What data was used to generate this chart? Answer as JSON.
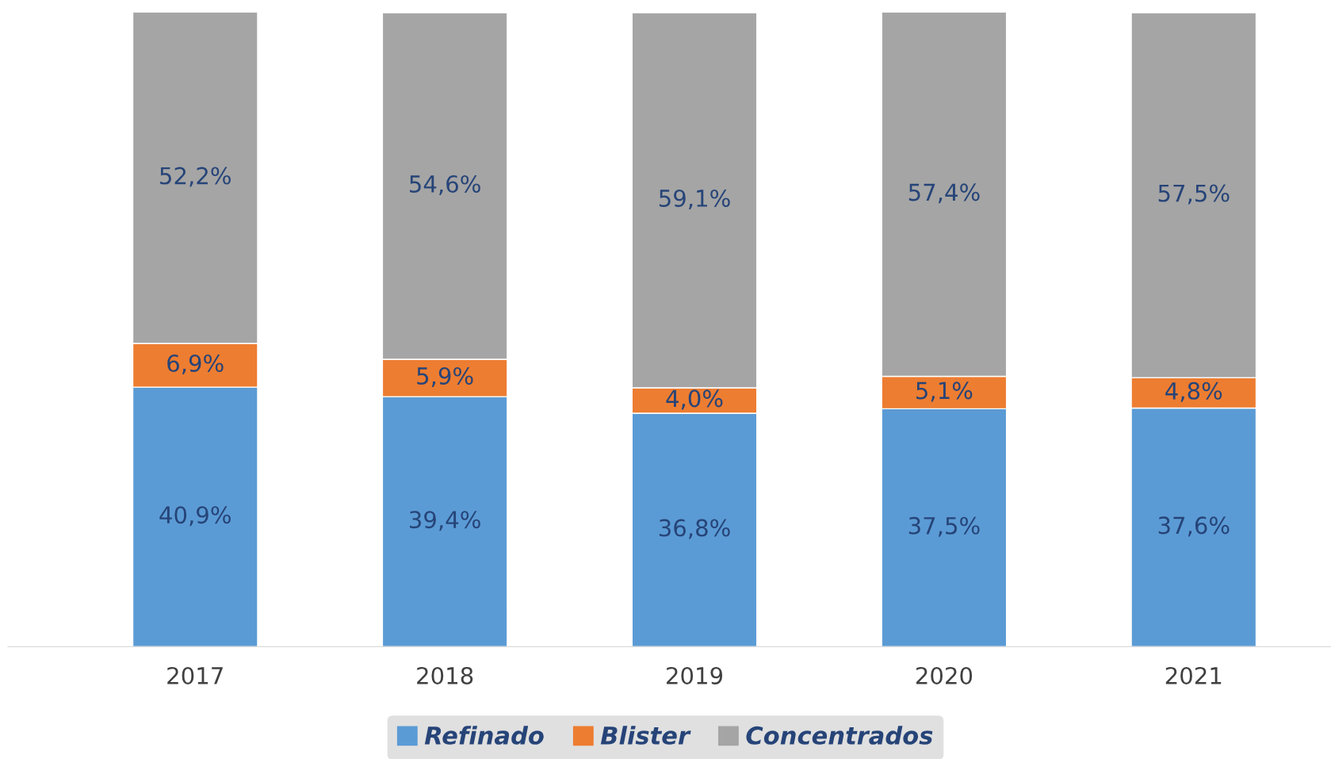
{
  "chart_data": {
    "type": "bar",
    "stacked": true,
    "categories": [
      "2017",
      "2018",
      "2019",
      "2020",
      "2021"
    ],
    "series": [
      {
        "name": "Refinado",
        "color": "#5b9bd5",
        "values": [
          40.9,
          39.4,
          36.8,
          37.5,
          37.6
        ],
        "value_labels": [
          "40,9%",
          "39,4%",
          "36,8%",
          "37,5%",
          "37,6%"
        ]
      },
      {
        "name": "Blister",
        "color": "#ed7d31",
        "values": [
          6.9,
          5.9,
          4.0,
          5.1,
          4.8
        ],
        "value_labels": [
          "6,9%",
          "5,9%",
          "4,0%",
          "5,1%",
          "4,8%"
        ]
      },
      {
        "name": "Concentrados",
        "color": "#a5a5a5",
        "values": [
          52.2,
          54.6,
          59.1,
          57.4,
          57.5
        ],
        "value_labels": [
          "52,2%",
          "54,6%",
          "59,1%",
          "57,4%",
          "57,5%"
        ]
      }
    ],
    "legend": "bottom",
    "grid": false
  }
}
